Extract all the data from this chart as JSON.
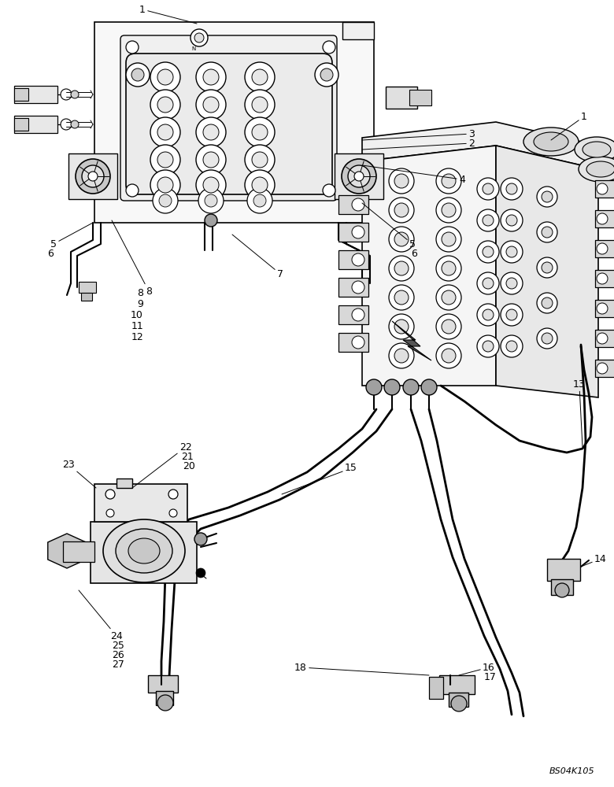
{
  "bg_color": "#ffffff",
  "lc": "#000000",
  "fig_width": 7.8,
  "fig_height": 10.0,
  "watermark": "BS04K105",
  "fs": 9
}
